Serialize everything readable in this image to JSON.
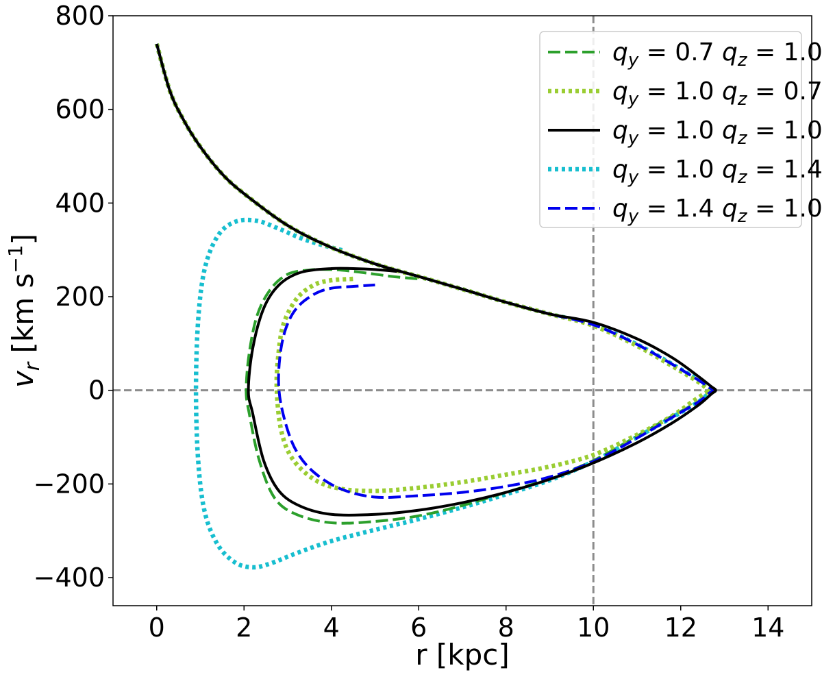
{
  "chart_data": {
    "type": "line",
    "xlabel": "r [kpc]",
    "ylabel": "v_r [km s^-1]",
    "xlim": [
      -1.0,
      15.0
    ],
    "ylim": [
      -460,
      800
    ],
    "xticks": [
      0,
      2,
      4,
      6,
      8,
      10,
      12,
      14
    ],
    "yticks": [
      -400,
      -200,
      0,
      200,
      400,
      600,
      800
    ],
    "xtick_labels": [
      "0",
      "2",
      "4",
      "6",
      "8",
      "10",
      "12",
      "14"
    ],
    "ytick_labels": [
      "−400",
      "−200",
      "0",
      "200",
      "400",
      "600",
      "800"
    ],
    "reference_lines": [
      {
        "orientation": "vertical",
        "value": 10,
        "style": "dashed",
        "color": "#8c8c8c"
      },
      {
        "orientation": "horizontal",
        "value": 0,
        "style": "dashed",
        "color": "#8c8c8c"
      }
    ],
    "legend_position": "top-right",
    "series": [
      {
        "name": "q_y = 0.7 q_z = 1.0",
        "legend_parts": [
          "q",
          "y",
          " = 0.7 ",
          "q",
          "z",
          " = 1.0"
        ],
        "color": "#2ca02c",
        "style": "dashed",
        "x": [
          0.0,
          0.3,
          0.6,
          1.0,
          1.5,
          2.0,
          3.0,
          4.0,
          5.0,
          6.0,
          7.0,
          8.0,
          9.0,
          10.0,
          11.0,
          11.8,
          12.4,
          12.65,
          12.75,
          12.65,
          12.4,
          11.8,
          11.0,
          10.0,
          9.0,
          8.0,
          7.0,
          6.0,
          5.0,
          4.0,
          3.2,
          2.7,
          2.35,
          2.12,
          2.05,
          2.12,
          2.3,
          2.6,
          3.0,
          3.5,
          4.0,
          4.5,
          5.0,
          5.5,
          6.0
        ],
        "y": [
          740,
          640,
          580,
          520,
          462,
          420,
          352,
          305,
          270,
          243,
          216,
          188,
          163,
          140,
          98,
          56,
          22,
          6,
          0,
          -6,
          -25,
          -55,
          -98,
          -150,
          -188,
          -218,
          -246,
          -268,
          -280,
          -283,
          -265,
          -230,
          -150,
          -50,
          0,
          80,
          160,
          215,
          248,
          257,
          258,
          254,
          248,
          242,
          238
        ]
      },
      {
        "name": "q_y = 1.0 q_z = 0.7",
        "legend_parts": [
          "q",
          "y",
          " = 1.0 ",
          "q",
          "z",
          " = 0.7"
        ],
        "color": "#9acd32",
        "style": "dotted",
        "x": [
          0.0,
          0.3,
          0.6,
          1.0,
          1.5,
          2.0,
          3.0,
          4.0,
          5.0,
          6.0,
          7.0,
          8.0,
          9.0,
          10.0,
          11.0,
          11.8,
          12.4,
          12.6,
          12.7,
          12.6,
          12.3,
          11.8,
          11.0,
          10.0,
          9.0,
          8.0,
          7.0,
          6.0,
          5.0,
          4.2,
          3.6,
          3.1,
          2.85,
          2.75,
          2.78,
          2.9,
          3.2,
          3.6,
          4.0,
          4.5
        ],
        "y": [
          740,
          640,
          580,
          520,
          462,
          420,
          352,
          305,
          270,
          243,
          216,
          188,
          163,
          138,
          95,
          52,
          18,
          4,
          0,
          -4,
          -22,
          -55,
          -95,
          -138,
          -163,
          -180,
          -196,
          -208,
          -215,
          -210,
          -190,
          -145,
          -85,
          0,
          70,
          140,
          195,
          225,
          235,
          238
        ]
      },
      {
        "name": "q_y = 1.0 q_z = 1.0",
        "legend_parts": [
          "q",
          "y",
          " = 1.0 ",
          "q",
          "z",
          " = 1.0"
        ],
        "color": "#000000",
        "style": "solid",
        "x": [
          0.0,
          0.3,
          0.6,
          1.0,
          1.5,
          2.0,
          3.0,
          4.0,
          5.0,
          6.0,
          7.0,
          8.0,
          9.0,
          10.0,
          11.0,
          11.8,
          12.4,
          12.7,
          12.8,
          12.7,
          12.4,
          11.8,
          11.0,
          10.0,
          9.0,
          8.0,
          7.0,
          6.0,
          5.0,
          4.0,
          3.3,
          2.8,
          2.45,
          2.2,
          2.1,
          2.2,
          2.45,
          2.8,
          3.3,
          4.0,
          4.5,
          5.0,
          5.5
        ],
        "y": [
          740,
          640,
          580,
          520,
          462,
          420,
          352,
          305,
          270,
          243,
          216,
          188,
          163,
          145,
          110,
          70,
          30,
          8,
          0,
          -8,
          -32,
          -70,
          -112,
          -155,
          -190,
          -218,
          -240,
          -256,
          -265,
          -265,
          -248,
          -215,
          -150,
          -50,
          0,
          90,
          175,
          225,
          252,
          260,
          260,
          258,
          254
        ]
      },
      {
        "name": "q_y = 1.0 q_z = 1.4",
        "legend_parts": [
          "q",
          "y",
          " = 1.0 ",
          "q",
          "z",
          " = 1.4"
        ],
        "color": "#17becf",
        "style": "dotted",
        "x": [
          0.0,
          0.3,
          0.6,
          1.0,
          1.5,
          2.0,
          3.0,
          4.0,
          5.0,
          6.0,
          7.0,
          8.0,
          9.0,
          10.0,
          11.0,
          11.8,
          12.4,
          12.65,
          12.75,
          12.65,
          12.4,
          11.8,
          11.0,
          10.0,
          9.0,
          8.0,
          7.0,
          6.0,
          5.0,
          4.0,
          3.2,
          2.6,
          2.2,
          1.8,
          1.4,
          1.1,
          0.95,
          0.9,
          0.95,
          1.1,
          1.4,
          1.8,
          2.3,
          2.8,
          3.3,
          3.8,
          4.3
        ],
        "y": [
          740,
          640,
          580,
          520,
          462,
          420,
          352,
          305,
          270,
          243,
          216,
          188,
          163,
          140,
          98,
          56,
          22,
          6,
          0,
          -6,
          -25,
          -58,
          -100,
          -152,
          -192,
          -222,
          -250,
          -275,
          -298,
          -322,
          -348,
          -370,
          -378,
          -368,
          -330,
          -260,
          -150,
          0,
          150,
          260,
          330,
          360,
          362,
          345,
          325,
          310,
          298
        ]
      },
      {
        "name": "q_y = 1.4 q_z = 1.0",
        "legend_parts": [
          "q",
          "y",
          " = 1.4 ",
          "q",
          "z",
          " = 1.0"
        ],
        "color": "#0000ee",
        "style": "dashed",
        "x": [
          0.0,
          0.3,
          0.6,
          1.0,
          1.5,
          2.0,
          3.0,
          4.0,
          5.0,
          6.0,
          7.0,
          8.0,
          9.0,
          10.0,
          11.0,
          11.8,
          12.4,
          12.65,
          12.75,
          12.65,
          12.4,
          11.8,
          11.0,
          10.0,
          9.0,
          8.0,
          7.0,
          6.0,
          5.0,
          4.2,
          3.6,
          3.2,
          2.95,
          2.8,
          2.82,
          2.95,
          3.2,
          3.6,
          4.0,
          4.5,
          5.0
        ],
        "y": [
          740,
          640,
          580,
          520,
          462,
          420,
          352,
          305,
          270,
          243,
          216,
          188,
          163,
          140,
          98,
          56,
          22,
          6,
          0,
          -6,
          -25,
          -58,
          -102,
          -152,
          -185,
          -205,
          -218,
          -225,
          -228,
          -210,
          -175,
          -130,
          -70,
          0,
          70,
          130,
          175,
          205,
          218,
          222,
          225
        ]
      }
    ]
  }
}
